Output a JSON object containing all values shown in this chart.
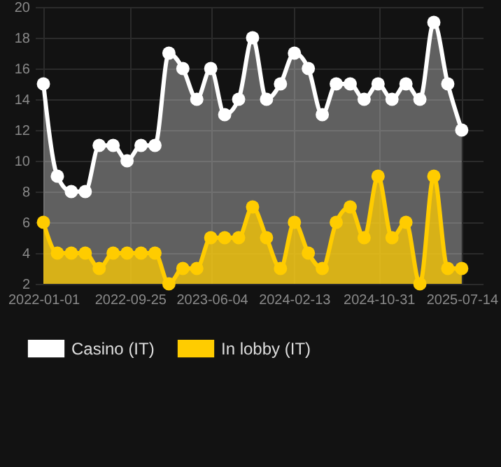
{
  "chart_data": {
    "type": "area",
    "x": [
      "2022-01-01",
      "2022-02-13",
      "2022-03-28",
      "2022-05-10",
      "2022-06-22",
      "2022-08-04",
      "2022-09-16",
      "2022-10-29",
      "2022-12-11",
      "2023-01-23",
      "2023-03-07",
      "2023-04-19",
      "2023-06-01",
      "2023-07-14",
      "2023-08-26",
      "2023-10-08",
      "2023-11-20",
      "2024-01-02",
      "2024-02-14",
      "2024-03-28",
      "2024-05-10",
      "2024-06-22",
      "2024-08-04",
      "2024-09-16",
      "2024-10-29",
      "2024-12-11",
      "2025-01-23",
      "2025-03-07",
      "2025-04-19",
      "2025-06-01",
      "2025-07-14"
    ],
    "series": [
      {
        "name": "Casino (IT)",
        "color": "#ffffff",
        "values": [
          15,
          9,
          8,
          8,
          11,
          11,
          10,
          11,
          11,
          17,
          16,
          14,
          16,
          13,
          14,
          18,
          14,
          15,
          17,
          16,
          13,
          15,
          15,
          14,
          15,
          14,
          15,
          14,
          19,
          15,
          12
        ]
      },
      {
        "name": "In lobby (IT)",
        "color": "#ffcc00",
        "values": [
          6,
          4,
          4,
          4,
          3,
          4,
          4,
          4,
          4,
          2,
          3,
          3,
          5,
          5,
          5,
          7,
          5,
          3,
          6,
          4,
          3,
          6,
          7,
          5,
          9,
          5,
          6,
          2,
          9,
          3,
          3
        ]
      }
    ],
    "xlim": [
      "2021-12-06",
      "2025-09-17"
    ],
    "xticks": [
      "2022-01-01",
      "2022-09-25",
      "2023-06-04",
      "2024-02-13",
      "2024-10-31",
      "2025-07-14"
    ],
    "ylim": [
      2,
      20
    ],
    "yticks": [
      2,
      4,
      6,
      8,
      10,
      12,
      14,
      16,
      18,
      20
    ],
    "grid": true,
    "legend": "bottom",
    "marker": "circle",
    "line_style": "solid"
  }
}
